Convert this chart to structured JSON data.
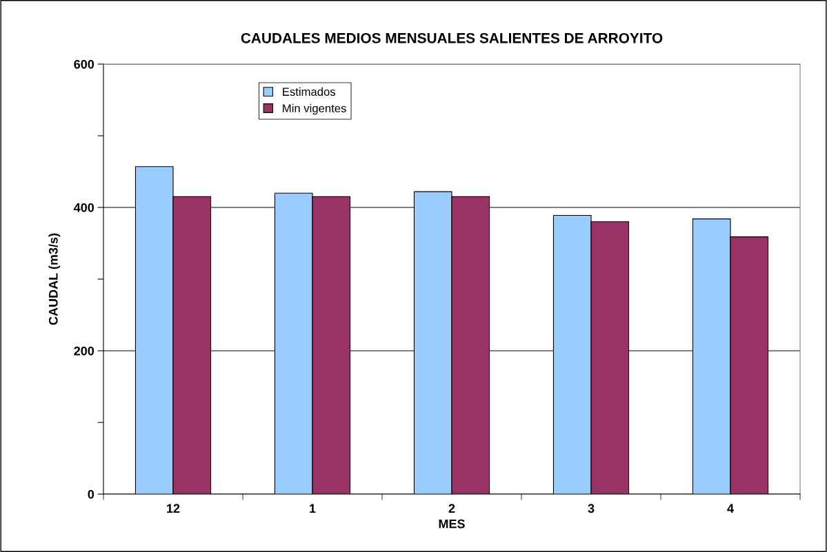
{
  "chart_data": {
    "type": "bar",
    "title": "CAUDALES MEDIOS MENSUALES SALIENTES DE ARROYITO",
    "xlabel": "MES",
    "ylabel": "CAUDAL (m3/s)",
    "categories": [
      "12",
      "1",
      "2",
      "3",
      "4"
    ],
    "series": [
      {
        "name": "Estimados",
        "color": "#99ccff",
        "values": [
          457,
          420,
          422,
          389,
          384
        ]
      },
      {
        "name": "Min vigentes",
        "color": "#993366",
        "values": [
          415,
          415,
          415,
          380,
          359
        ]
      }
    ],
    "ylim": [
      0,
      600
    ],
    "yticks": [
      0,
      {
        "value": 100,
        "label": null
      },
      200,
      {
        "value": 300,
        "label": null
      },
      400,
      {
        "value": 500,
        "label": null
      },
      600
    ],
    "grid": "y",
    "legend": "top left"
  }
}
